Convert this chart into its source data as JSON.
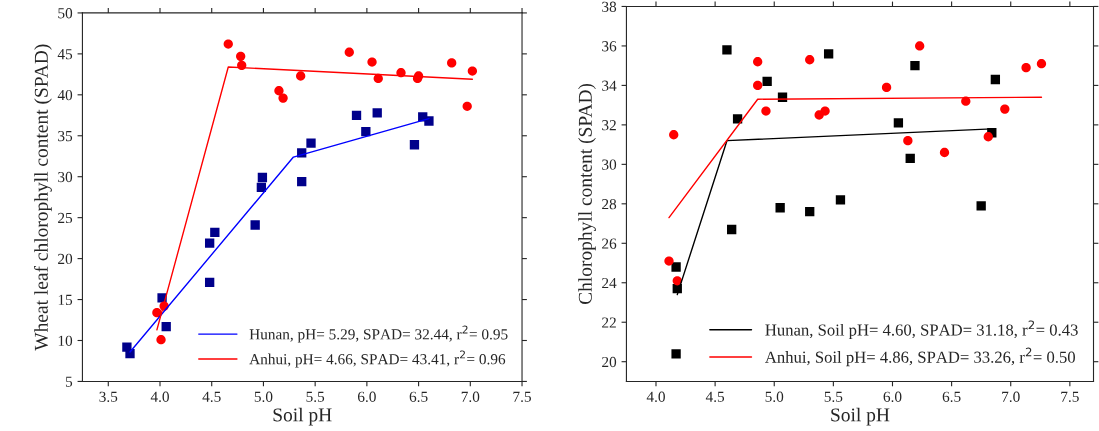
{
  "chart_data": [
    {
      "type": "scatter",
      "xlabel": "Soil pH",
      "ylabel": "Wheat leaf chlorophyll content (SPAD)",
      "xlim": [
        3.25,
        7.5
      ],
      "ylim": [
        5,
        50
      ],
      "xticks": [
        3.5,
        {
          "value": 4,
          "label": "4.0"
        },
        4.5,
        {
          "value": 5,
          "label": "5.0"
        },
        5.5,
        {
          "value": 6,
          "label": "6.0"
        },
        6.5,
        {
          "value": 7,
          "label": "7.0"
        },
        7.5
      ],
      "yticks": [
        5,
        10,
        15,
        20,
        25,
        30,
        35,
        40,
        45,
        50
      ],
      "grid": false,
      "legend": "bottom right",
      "series": [
        {
          "marker": "square",
          "color": "#00008b",
          "x": [
            3.68,
            3.71,
            4.02,
            4.06,
            4.48,
            4.48,
            4.53,
            4.92,
            4.98,
            4.99,
            5.37,
            5.37,
            5.46,
            5.9,
            5.99,
            6.1,
            6.46,
            6.54,
            6.6
          ],
          "values": [
            9.2,
            8.4,
            15.2,
            11.7,
            21.9,
            17.1,
            23.2,
            24.1,
            28.7,
            29.9,
            32.9,
            29.4,
            34.1,
            37.5,
            35.5,
            37.8,
            33.9,
            37.3,
            36.8
          ]
        },
        {
          "marker": "circle",
          "color": "#ff0000",
          "x": [
            3.97,
            4.01,
            4.04,
            4.66,
            4.78,
            4.79,
            5.15,
            5.19,
            5.36,
            5.83,
            6.05,
            6.11,
            6.33,
            6.49,
            6.5,
            6.82,
            6.97,
            7.02
          ],
          "values": [
            13.4,
            10.1,
            14.2,
            46.2,
            44.7,
            43.6,
            40.5,
            39.6,
            42.3,
            45.2,
            44.0,
            42.0,
            42.7,
            42.0,
            42.3,
            43.9,
            38.6,
            42.9
          ]
        },
        {
          "type": "line",
          "name": "Hunan, pH= 5.29, SPAD= 32.44, r$^{2}$= 0.95",
          "color": "#0000ff",
          "x": [
            3.71,
            5.29,
            6.6
          ],
          "values": [
            8.6,
            32.4,
            37.1
          ]
        },
        {
          "type": "line",
          "name": "Anhui, pH= 4.66, SPAD= 43.41, r$^{2}$= 0.96",
          "color": "#ff0000",
          "x": [
            3.97,
            4.66,
            7.02
          ],
          "values": [
            11.3,
            43.4,
            41.9
          ]
        }
      ]
    },
    {
      "type": "scatter",
      "xlabel": "Soil pH",
      "ylabel": "Chlorophyll content (SPAD)",
      "xlim": [
        3.75,
        7.7
      ],
      "ylim": [
        19,
        38
      ],
      "xticks": [
        {
          "value": 4,
          "label": "4.0"
        },
        4.5,
        {
          "value": 5,
          "label": "5.0"
        },
        5.5,
        {
          "value": 6,
          "label": "6.0"
        },
        6.5,
        {
          "value": 7,
          "label": "7.0"
        },
        7.5
      ],
      "yticks": [
        20,
        22,
        24,
        26,
        28,
        30,
        32,
        34,
        36,
        38
      ],
      "grid": false,
      "legend": "bottom right",
      "series": [
        {
          "marker": "square",
          "color": "#000000",
          "x": [
            4.17,
            4.18,
            4.17,
            4.6,
            4.64,
            4.69,
            4.94,
            5.07,
            5.05,
            5.3,
            5.46,
            5.56,
            6.05,
            6.15,
            6.19,
            6.75,
            6.84,
            6.87
          ],
          "values": [
            24.8,
            23.7,
            20.4,
            35.8,
            26.7,
            32.3,
            34.2,
            33.4,
            27.8,
            27.6,
            35.6,
            28.2,
            32.1,
            30.3,
            35.0,
            27.9,
            31.6,
            34.3
          ]
        },
        {
          "marker": "circle",
          "color": "#ff0000",
          "x": [
            4.11,
            4.18,
            4.15,
            4.86,
            4.86,
            4.93,
            5.3,
            5.38,
            5.43,
            5.95,
            6.13,
            6.23,
            6.44,
            6.62,
            6.81,
            6.95,
            7.13,
            7.26
          ],
          "values": [
            25.1,
            24.1,
            31.5,
            35.2,
            34.0,
            32.7,
            35.3,
            32.5,
            32.7,
            33.9,
            31.2,
            36.0,
            30.6,
            33.2,
            31.4,
            32.8,
            34.9,
            35.1
          ]
        },
        {
          "type": "line",
          "name": "Hunan, Soil pH= 4.60, SPAD= 31.18, r$^{2}$= 0.43",
          "color": "#000000",
          "x": [
            4.18,
            4.6,
            6.84
          ],
          "values": [
            23.4,
            31.2,
            31.8
          ]
        },
        {
          "type": "line",
          "name": "Anhui, Soil pH= 4.86, SPAD= 33.26, r$^{2}$= 0.50",
          "color": "#ff0000",
          "x": [
            4.11,
            4.86,
            7.26
          ],
          "values": [
            27.3,
            33.3,
            33.4
          ]
        }
      ]
    }
  ]
}
